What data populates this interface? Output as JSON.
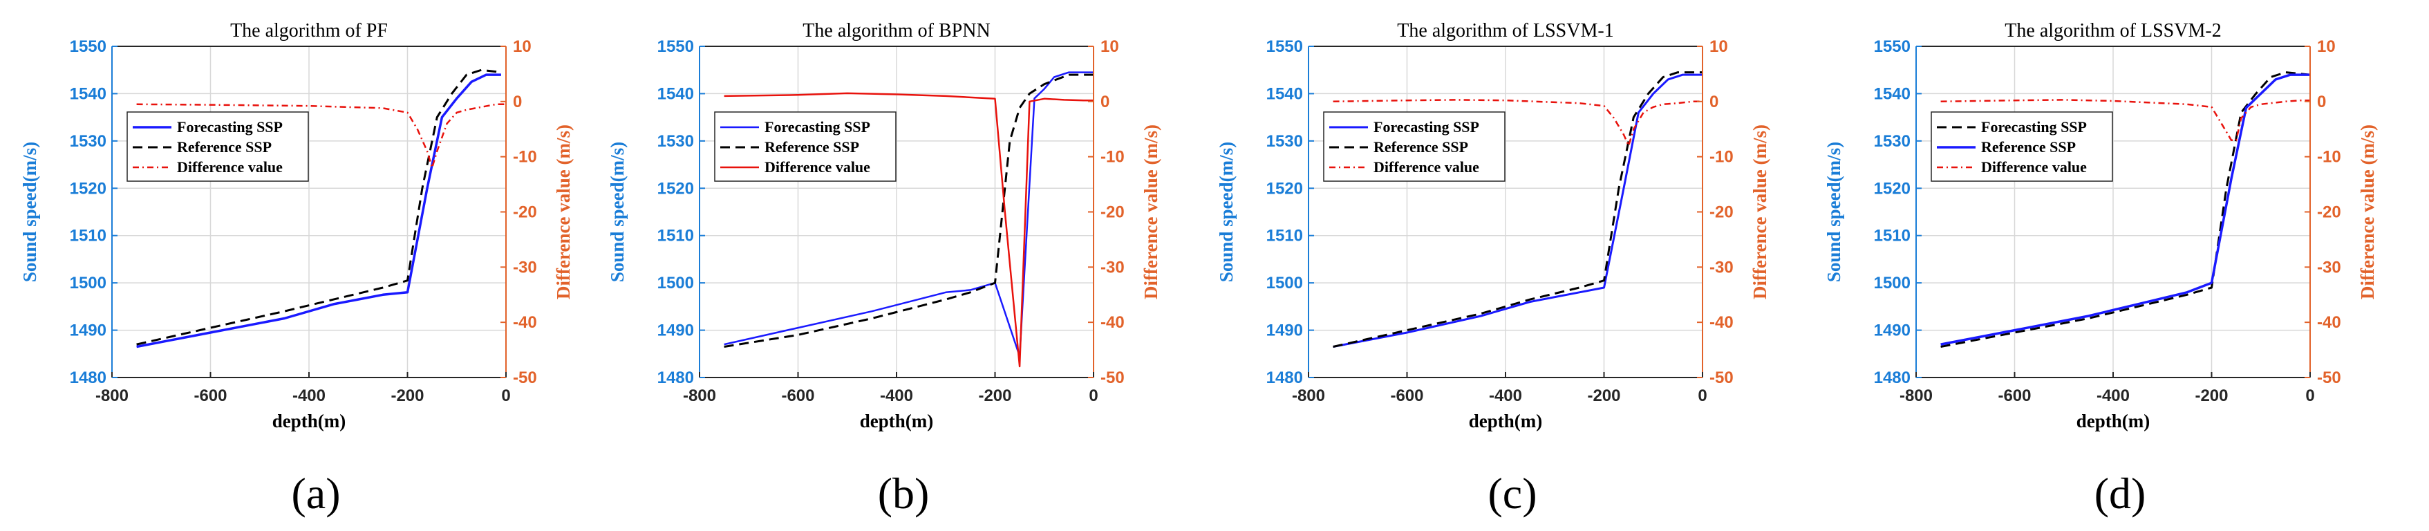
{
  "chart_data": [
    {
      "type": "line",
      "title": "The algorithm of PF",
      "caption": "(a)",
      "xlabel": "depth(m)",
      "ylabel": "Sound speed(m/s)",
      "ylabel_right": "Difference value (m/s)",
      "xlim": [
        -800,
        0
      ],
      "ylim": [
        1480,
        1550
      ],
      "ylim_right": [
        -50,
        10
      ],
      "xticks": [
        -800,
        -600,
        -400,
        -200,
        0
      ],
      "yticks": [
        1480,
        1490,
        1500,
        1510,
        1520,
        1530,
        1540,
        1550
      ],
      "yticks_right": [
        -50,
        -40,
        -30,
        -20,
        -10,
        0,
        10
      ],
      "grid": true,
      "legend_position": "upper-left",
      "series": [
        {
          "name": "Forecasting SSP",
          "axis": "left",
          "color": "#1a1aff",
          "style": "solid",
          "width": 3.5,
          "x": [
            -750,
            -600,
            -450,
            -350,
            -250,
            -200,
            -160,
            -130,
            -100,
            -70,
            -40,
            -10
          ],
          "y": [
            1486.5,
            1489.5,
            1492.5,
            1495.5,
            1497.5,
            1498,
            1520,
            1535,
            1539,
            1542.5,
            1544,
            1544
          ]
        },
        {
          "name": "Reference SSP",
          "axis": "left",
          "color": "#000000",
          "style": "dashed",
          "width": 3,
          "x": [
            -750,
            -600,
            -450,
            -350,
            -250,
            -200,
            -170,
            -140,
            -110,
            -80,
            -50,
            -10
          ],
          "y": [
            1487,
            1490.5,
            1494,
            1496.5,
            1499,
            1500.5,
            1520,
            1535,
            1540,
            1544,
            1545,
            1544.5
          ]
        },
        {
          "name": "Difference value",
          "axis": "right",
          "color": "#e8120c",
          "style": "dashdot",
          "width": 2.5,
          "x": [
            -750,
            -600,
            -400,
            -250,
            -200,
            -180,
            -160,
            -150,
            -140,
            -120,
            -100,
            -80,
            -50,
            -20,
            0
          ],
          "y": [
            -0.5,
            -0.6,
            -0.8,
            -1.2,
            -2,
            -5,
            -9,
            -12,
            -9,
            -4,
            -2,
            -1.5,
            -1,
            -0.5,
            -0.5
          ]
        }
      ]
    },
    {
      "type": "line",
      "title": "The algorithm of BPNN",
      "caption": "(b)",
      "xlabel": "depth(m)",
      "ylabel": "Sound speed(m/s)",
      "ylabel_right": "Difference value (m/s)",
      "xlim": [
        -800,
        0
      ],
      "ylim": [
        1480,
        1550
      ],
      "ylim_right": [
        -50,
        10
      ],
      "xticks": [
        -800,
        -600,
        -400,
        -200,
        0
      ],
      "yticks": [
        1480,
        1490,
        1500,
        1510,
        1520,
        1530,
        1540,
        1550
      ],
      "yticks_right": [
        -50,
        -40,
        -30,
        -20,
        -10,
        0,
        10
      ],
      "grid": true,
      "legend_position": "upper-right",
      "series": [
        {
          "name": "Forecasting SSP",
          "axis": "left",
          "color": "#1a1aff",
          "style": "solid",
          "width": 2.5,
          "x": [
            -750,
            -600,
            -450,
            -300,
            -250,
            -200,
            -150,
            -120,
            -100,
            -80,
            -50,
            0
          ],
          "y": [
            1487,
            1490.5,
            1494,
            1498,
            1498.5,
            1500,
            1484.5,
            1539,
            1541,
            1543.5,
            1544.5,
            1544.5
          ]
        },
        {
          "name": "Reference SSP",
          "axis": "left",
          "color": "#000000",
          "style": "dashed",
          "width": 3,
          "x": [
            -750,
            -600,
            -450,
            -300,
            -250,
            -200,
            -185,
            -170,
            -150,
            -130,
            -100,
            -50,
            0
          ],
          "y": [
            1486.5,
            1489,
            1492.5,
            1496.5,
            1498,
            1500,
            1515,
            1530,
            1537,
            1540,
            1542,
            1544,
            1544
          ]
        },
        {
          "name": "Difference value",
          "axis": "right",
          "color": "#e8120c",
          "style": "solid",
          "width": 2.5,
          "x": [
            -750,
            -600,
            -500,
            -400,
            -300,
            -200,
            -180,
            -150,
            -130,
            -100,
            -60,
            -20,
            0
          ],
          "y": [
            1,
            1.2,
            1.5,
            1.3,
            1,
            0.5,
            -20,
            -48,
            0,
            0.5,
            0.3,
            0.2,
            0.2
          ]
        }
      ]
    },
    {
      "type": "line",
      "title": "The algorithm of LSSVM-1",
      "caption": "(c)",
      "xlabel": "depth(m)",
      "ylabel": "Sound speed(m/s)",
      "ylabel_right": "Difference value (m/s)",
      "xlim": [
        -800,
        0
      ],
      "ylim": [
        1480,
        1550
      ],
      "ylim_right": [
        -50,
        10
      ],
      "xticks": [
        -800,
        -600,
        -400,
        -200,
        0
      ],
      "yticks": [
        1480,
        1490,
        1500,
        1510,
        1520,
        1530,
        1540,
        1550
      ],
      "yticks_right": [
        -50,
        -40,
        -30,
        -20,
        -10,
        0,
        10
      ],
      "grid": true,
      "legend_position": "upper-right",
      "series": [
        {
          "name": "Forecasting SSP",
          "axis": "left",
          "color": "#1a1aff",
          "style": "solid",
          "width": 3,
          "x": [
            -750,
            -600,
            -450,
            -350,
            -250,
            -200,
            -160,
            -130,
            -100,
            -70,
            -40,
            0
          ],
          "y": [
            1486.5,
            1489.5,
            1493,
            1496,
            1498,
            1499,
            1520,
            1536,
            1540,
            1543,
            1544,
            1544
          ]
        },
        {
          "name": "Reference SSP",
          "axis": "left",
          "color": "#000000",
          "style": "dashed",
          "width": 3,
          "x": [
            -750,
            -600,
            -450,
            -350,
            -250,
            -200,
            -170,
            -140,
            -110,
            -80,
            -50,
            0
          ],
          "y": [
            1486.5,
            1490,
            1493.5,
            1496.5,
            1499,
            1500.5,
            1520,
            1535,
            1540,
            1543.5,
            1544.5,
            1544.5
          ]
        },
        {
          "name": "Difference value",
          "axis": "right",
          "color": "#e8120c",
          "style": "dashdot",
          "width": 2.5,
          "x": [
            -750,
            -600,
            -500,
            -400,
            -250,
            -200,
            -180,
            -160,
            -150,
            -140,
            -120,
            -100,
            -80,
            -50,
            -20,
            0
          ],
          "y": [
            0,
            0.2,
            0.3,
            0.2,
            -0.3,
            -0.8,
            -3,
            -6,
            -8,
            -5,
            -2,
            -1,
            -0.5,
            -0.3,
            0,
            0
          ]
        }
      ]
    },
    {
      "type": "line",
      "title": "The algorithm of LSSVM-2",
      "caption": "(d)",
      "xlabel": "depth(m)",
      "ylabel": "Sound speed(m/s)",
      "ylabel_right": "Difference value (m/s)",
      "xlim": [
        -800,
        0
      ],
      "ylim": [
        1480,
        1550
      ],
      "ylim_right": [
        -50,
        10
      ],
      "xticks": [
        -800,
        -600,
        -400,
        -200,
        0
      ],
      "yticks": [
        1480,
        1490,
        1500,
        1510,
        1520,
        1530,
        1540,
        1550
      ],
      "yticks_right": [
        -50,
        -40,
        -30,
        -20,
        -10,
        0,
        10
      ],
      "grid": true,
      "legend_position": "upper-left",
      "series": [
        {
          "name": "Forecasting SSP",
          "axis": "left",
          "color": "#000000",
          "style": "dashed",
          "width": 3,
          "x": [
            -750,
            -600,
            -450,
            -350,
            -250,
            -200,
            -170,
            -140,
            -110,
            -80,
            -50,
            0
          ],
          "y": [
            1486.5,
            1489.5,
            1492.5,
            1495,
            1497.5,
            1499,
            1520,
            1536,
            1540,
            1543.5,
            1544.5,
            1544
          ]
        },
        {
          "name": "Reference SSP",
          "axis": "left",
          "color": "#1a1aff",
          "style": "solid",
          "width": 3.5,
          "x": [
            -750,
            -600,
            -450,
            -350,
            -250,
            -200,
            -160,
            -130,
            -100,
            -70,
            -40,
            0
          ],
          "y": [
            1487,
            1490,
            1493,
            1495.5,
            1498,
            1500,
            1522,
            1537,
            1540,
            1543,
            1544,
            1544
          ]
        },
        {
          "name": "Difference value",
          "axis": "right",
          "color": "#e8120c",
          "style": "dashdot",
          "width": 2.5,
          "x": [
            -750,
            -600,
            -500,
            -400,
            -250,
            -200,
            -180,
            -160,
            -150,
            -140,
            -120,
            -100,
            -80,
            -50,
            -20,
            0
          ],
          "y": [
            0,
            0.2,
            0.3,
            0.1,
            -0.5,
            -1,
            -4,
            -7,
            -7,
            -3,
            -1,
            -0.5,
            -0.3,
            0,
            0.2,
            0.2
          ]
        }
      ]
    }
  ]
}
